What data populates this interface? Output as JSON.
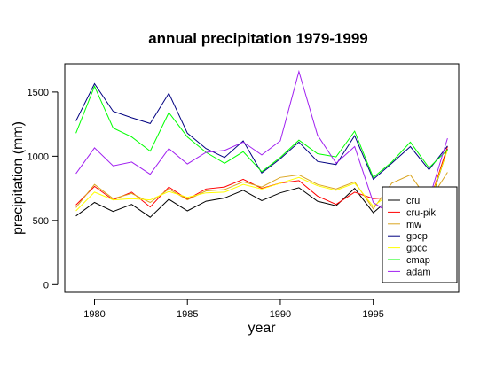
{
  "chart_data": {
    "type": "line",
    "title": "annual precipitation 1979-1999",
    "xlabel": "year",
    "ylabel": "precipitation (mm)",
    "xlim": [
      1978.4,
      1999.6
    ],
    "ylim": [
      -60,
      1720
    ],
    "xticks": [
      1980,
      1985,
      1990,
      1995
    ],
    "yticks": [
      0,
      500,
      1000,
      1500
    ],
    "grid": false,
    "legend_position": "bottom-right",
    "x": [
      1979,
      1980,
      1981,
      1982,
      1983,
      1984,
      1985,
      1986,
      1987,
      1988,
      1989,
      1990,
      1991,
      1992,
      1993,
      1994,
      1995,
      1996,
      1997,
      1998,
      1999
    ],
    "series": [
      {
        "name": "cru",
        "color": "#000000",
        "values": [
          535,
          640,
          570,
          625,
          525,
          665,
          575,
          650,
          675,
          735,
          655,
          715,
          755,
          650,
          615,
          750,
          560,
          685,
          720,
          610,
          1055
        ]
      },
      {
        "name": "cru-pik",
        "color": "#ff0000",
        "values": [
          620,
          765,
          660,
          720,
          605,
          760,
          665,
          745,
          760,
          820,
          750,
          790,
          810,
          690,
          625,
          720,
          670,
          680,
          740,
          630,
          1075
        ]
      },
      {
        "name": "mw",
        "color": "#daa520",
        "values": [
          600,
          780,
          670,
          710,
          640,
          745,
          660,
          730,
          740,
          800,
          760,
          835,
          855,
          780,
          745,
          800,
          590,
          790,
          855,
          650,
          875
        ]
      },
      {
        "name": "gpcp",
        "color": "#000080",
        "values": [
          1275,
          1565,
          1350,
          1300,
          1255,
          1490,
          1180,
          1060,
          990,
          1120,
          870,
          980,
          1110,
          960,
          935,
          1160,
          820,
          945,
          1075,
          895,
          1080
        ]
      },
      {
        "name": "gpcc",
        "color": "#ffff00",
        "values": [
          575,
          720,
          660,
          670,
          660,
          725,
          680,
          715,
          720,
          780,
          745,
          790,
          835,
          770,
          735,
          790,
          610,
          720,
          740,
          625,
          1050
        ]
      },
      {
        "name": "cmap",
        "color": "#00ff00",
        "values": [
          1180,
          1545,
          1220,
          1150,
          1040,
          1340,
          1150,
          1030,
          945,
          1035,
          880,
          990,
          1125,
          1020,
          995,
          1195,
          835,
          955,
          1110,
          910,
          1050
        ]
      },
      {
        "name": "adam",
        "color": "#a020f0",
        "values": [
          865,
          1065,
          925,
          955,
          860,
          1060,
          940,
          1030,
          1045,
          1110,
          1010,
          1120,
          1660,
          1165,
          945,
          1075,
          640,
          545,
          690,
          665,
          1140
        ]
      }
    ]
  }
}
